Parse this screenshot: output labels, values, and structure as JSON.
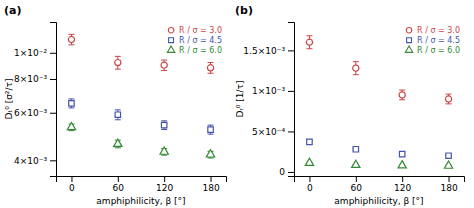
{
  "chart_data": [
    {
      "type": "scatter",
      "title": "(a)",
      "xlabel": "amphiphilicity, β [°]",
      "ylabel": "Dₜ⁰ [σ²/τ]",
      "x": [
        0,
        60,
        120,
        180
      ],
      "series": [
        {
          "name": "R / σ = 3.0",
          "color": "#cc4444",
          "marker": "circle",
          "values": [
            0.0112,
            0.0092,
            0.009,
            0.0088
          ],
          "errors": [
            0.0005,
            0.0005,
            0.0004,
            0.0004
          ]
        },
        {
          "name": "R / σ = 4.5",
          "color": "#4455aa",
          "marker": "square",
          "values": [
            0.0065,
            0.0059,
            0.0054,
            0.0052
          ],
          "errors": [
            0.00025,
            0.00025,
            0.0002,
            0.0002
          ]
        },
        {
          "name": "R / σ = 6.0",
          "color": "#338833",
          "marker": "triangle",
          "values": [
            0.0053,
            0.0046,
            0.0043,
            0.0042
          ],
          "errors": [
            0.00015,
            0.00015,
            0.00012,
            0.00012
          ]
        }
      ],
      "xlim": [
        -20,
        200
      ],
      "xticks": [
        0,
        60,
        120,
        180
      ],
      "ylim": [
        0.0035,
        0.013
      ],
      "yticks": [
        {
          "value": 0.004,
          "label": "4×10⁻³"
        },
        {
          "value": 0.006,
          "label": "6×10⁻³"
        },
        {
          "value": 0.008,
          "label": "8×10⁻³"
        },
        {
          "value": 0.01,
          "label": "1×10⁻²"
        }
      ],
      "log": "y",
      "grid": false,
      "legend": "upper right"
    },
    {
      "type": "scatter",
      "title": "(b)",
      "xlabel": "amphiphilicity, β [°]",
      "ylabel": "Dᵣ⁰ [1/τ]",
      "x": [
        0,
        60,
        120,
        180
      ],
      "series": [
        {
          "name": "R / σ = 3.0",
          "color": "#cc4444",
          "marker": "circle",
          "values": [
            0.0016,
            0.00128,
            0.00095,
            0.0009
          ],
          "errors": [
            8e-05,
            8e-05,
            6e-05,
            6e-05
          ]
        },
        {
          "name": "R / σ = 4.5",
          "color": "#4455aa",
          "marker": "square",
          "values": [
            0.00037,
            0.00028,
            0.00022,
            0.0002
          ],
          "errors": [
            1.5e-05,
            1.5e-05,
            1.2e-05,
            1.2e-05
          ]
        },
        {
          "name": "R / σ = 6.0",
          "color": "#338833",
          "marker": "triangle",
          "values": [
            0.00011,
            8.5e-05,
            8e-05,
            7.5e-05
          ],
          "errors": [
            6e-06,
            6e-06,
            5e-06,
            5e-06
          ]
        }
      ],
      "xlim": [
        -20,
        200
      ],
      "xticks": [
        0,
        60,
        120,
        180
      ],
      "ylim": [
        -5e-05,
        0.00185
      ],
      "yticks": [
        0,
        {
          "value": 0.0005,
          "label": "5×10⁻⁴"
        },
        {
          "value": 0.001,
          "label": "1×10⁻³"
        },
        {
          "value": 0.0015,
          "label": "1.5×10⁻³"
        }
      ],
      "grid": false,
      "legend": "upper right"
    }
  ]
}
